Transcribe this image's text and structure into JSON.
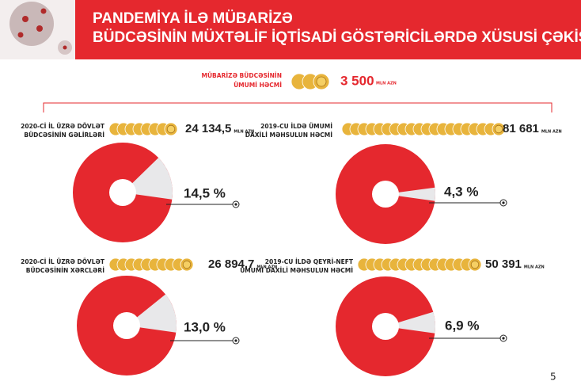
{
  "header": {
    "title": [
      "PANDEMİYA İLƏ MÜBARİZƏ",
      "BÜDCƏSİNİN MÜXTƏLİF İQTİSADİ GÖSTƏRİCİLƏRDƏ XÜSUSİ ÇƏKİSİ"
    ]
  },
  "budget": {
    "label": [
      "MÜBARİZƏ BÜDCƏSİNİN",
      "ÜMUMİ HƏCMİ"
    ],
    "amount": "3 500",
    "unit": "MLN AZN"
  },
  "page_number": "5",
  "chart_data": [
    {
      "type": "pie",
      "title": [
        "2020-Cİ İL ÜZRƏ DÖVLƏT",
        "BÜDCƏSİNİN GƏLİRLƏRİ"
      ],
      "total": "24 134,5",
      "unit": "MLN AZN",
      "values": [
        14.5
      ],
      "value_labels": [
        "14,5 %"
      ],
      "color": "#e8e8ea",
      "base_color": "#e5282e"
    },
    {
      "type": "pie",
      "title": [
        "2019-CU İLDƏ ÜMUMİ",
        "DAXİLİ MƏHSULUN HƏCMİ"
      ],
      "total": "81 681",
      "unit": "MLN AZN",
      "values": [
        4.3
      ],
      "value_labels": [
        "4,3 %"
      ],
      "color": "#e8e8ea",
      "base_color": "#e5282e"
    },
    {
      "type": "pie",
      "title": [
        "2020-Cİ İL ÜZRƏ DÖVLƏT",
        "BÜDCƏSİNİN XƏRCLƏRİ"
      ],
      "total": "26 894,7",
      "unit": "MLN AZN",
      "values": [
        13.0
      ],
      "value_labels": [
        "13,0 %"
      ],
      "color": "#e8e8ea",
      "base_color": "#e5282e"
    },
    {
      "type": "pie",
      "title": [
        "2019-CU İLDƏ QEYRİ-NEFT",
        "ÜMUMİ DAXİLİ MƏHSULUN HƏCMİ"
      ],
      "total": "50 391",
      "unit": "MLN AZN",
      "values": [
        6.9
      ],
      "value_labels": [
        "6,9 %"
      ],
      "color": "#e8e8ea",
      "base_color": "#e5282e"
    }
  ]
}
